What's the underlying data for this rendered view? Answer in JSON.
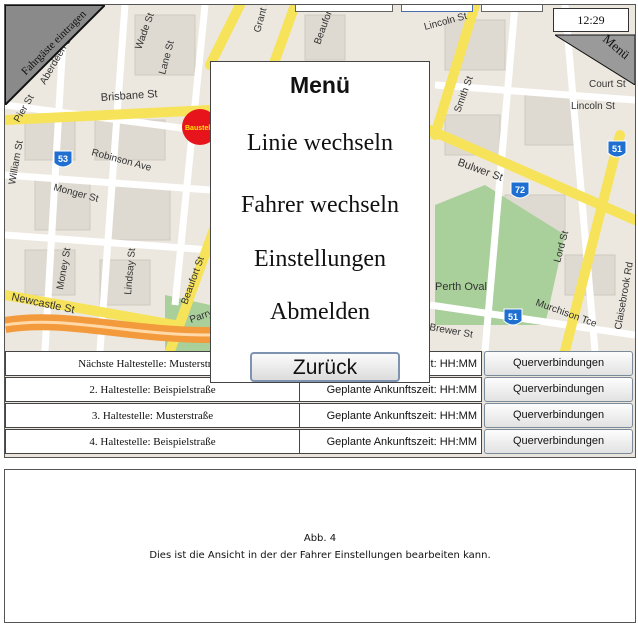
{
  "corner_left": {
    "label": "Fahrgäste eintragen"
  },
  "corner_right": {
    "label": "Menü"
  },
  "clock": {
    "time": "12:29"
  },
  "map": {
    "streets": [
      "Wade St",
      "Lane St",
      "Grant St",
      "Beaufort St",
      "Lincoln St",
      "Court St",
      "Lincoln St",
      "Brisbane St",
      "Robinson Ave",
      "Smith St",
      "Bulwer St",
      "Monger St",
      "Lord St",
      "Money St",
      "Lindsay St",
      "Beaufort St",
      "Parry",
      "Newcastle St",
      "Perth Oval",
      "Murchison Tce",
      "Claisebrook Rd",
      "Brewer St",
      "William St",
      "Aberdeen St",
      "Pier St"
    ],
    "route_shields": [
      "53",
      "72",
      "51",
      "51"
    ],
    "poi_label": "Baustelle"
  },
  "menu": {
    "title": "Menü",
    "items": [
      "Linie wechseln",
      "Fahrer wechseln",
      "Einstellungen",
      "Abmelden"
    ],
    "back_label": "Zurück"
  },
  "stops": [
    {
      "name": "Nächste Haltestelle:  Musterstraße",
      "time": "Geplante Ankunftszeit: HH:MM",
      "button": "Querverbindungen"
    },
    {
      "name": "2. Haltestelle: Beispielstraße",
      "time": "Geplante Ankunftszeit: HH:MM",
      "button": "Querverbindungen"
    },
    {
      "name": "3. Haltestelle: Musterstraße",
      "time": "Geplante Ankunftszeit: HH:MM",
      "button": "Querverbindungen"
    },
    {
      "name": "4. Haltestelle: Beispielstraße",
      "time": "Geplante Ankunftszeit: HH:MM",
      "button": "Querverbindungen"
    }
  ],
  "caption": {
    "line1": "Abb. 4",
    "line2": "Dies ist die Ansicht in der der Fahrer Einstellungen bearbeiten kann."
  },
  "colors": {
    "road_major": "#f7e35a",
    "road_minor": "#ffffff",
    "park": "#a9cf9a",
    "block": "#e2ded5",
    "highway": "#f29a3c",
    "shield": "#1f6fd1"
  }
}
